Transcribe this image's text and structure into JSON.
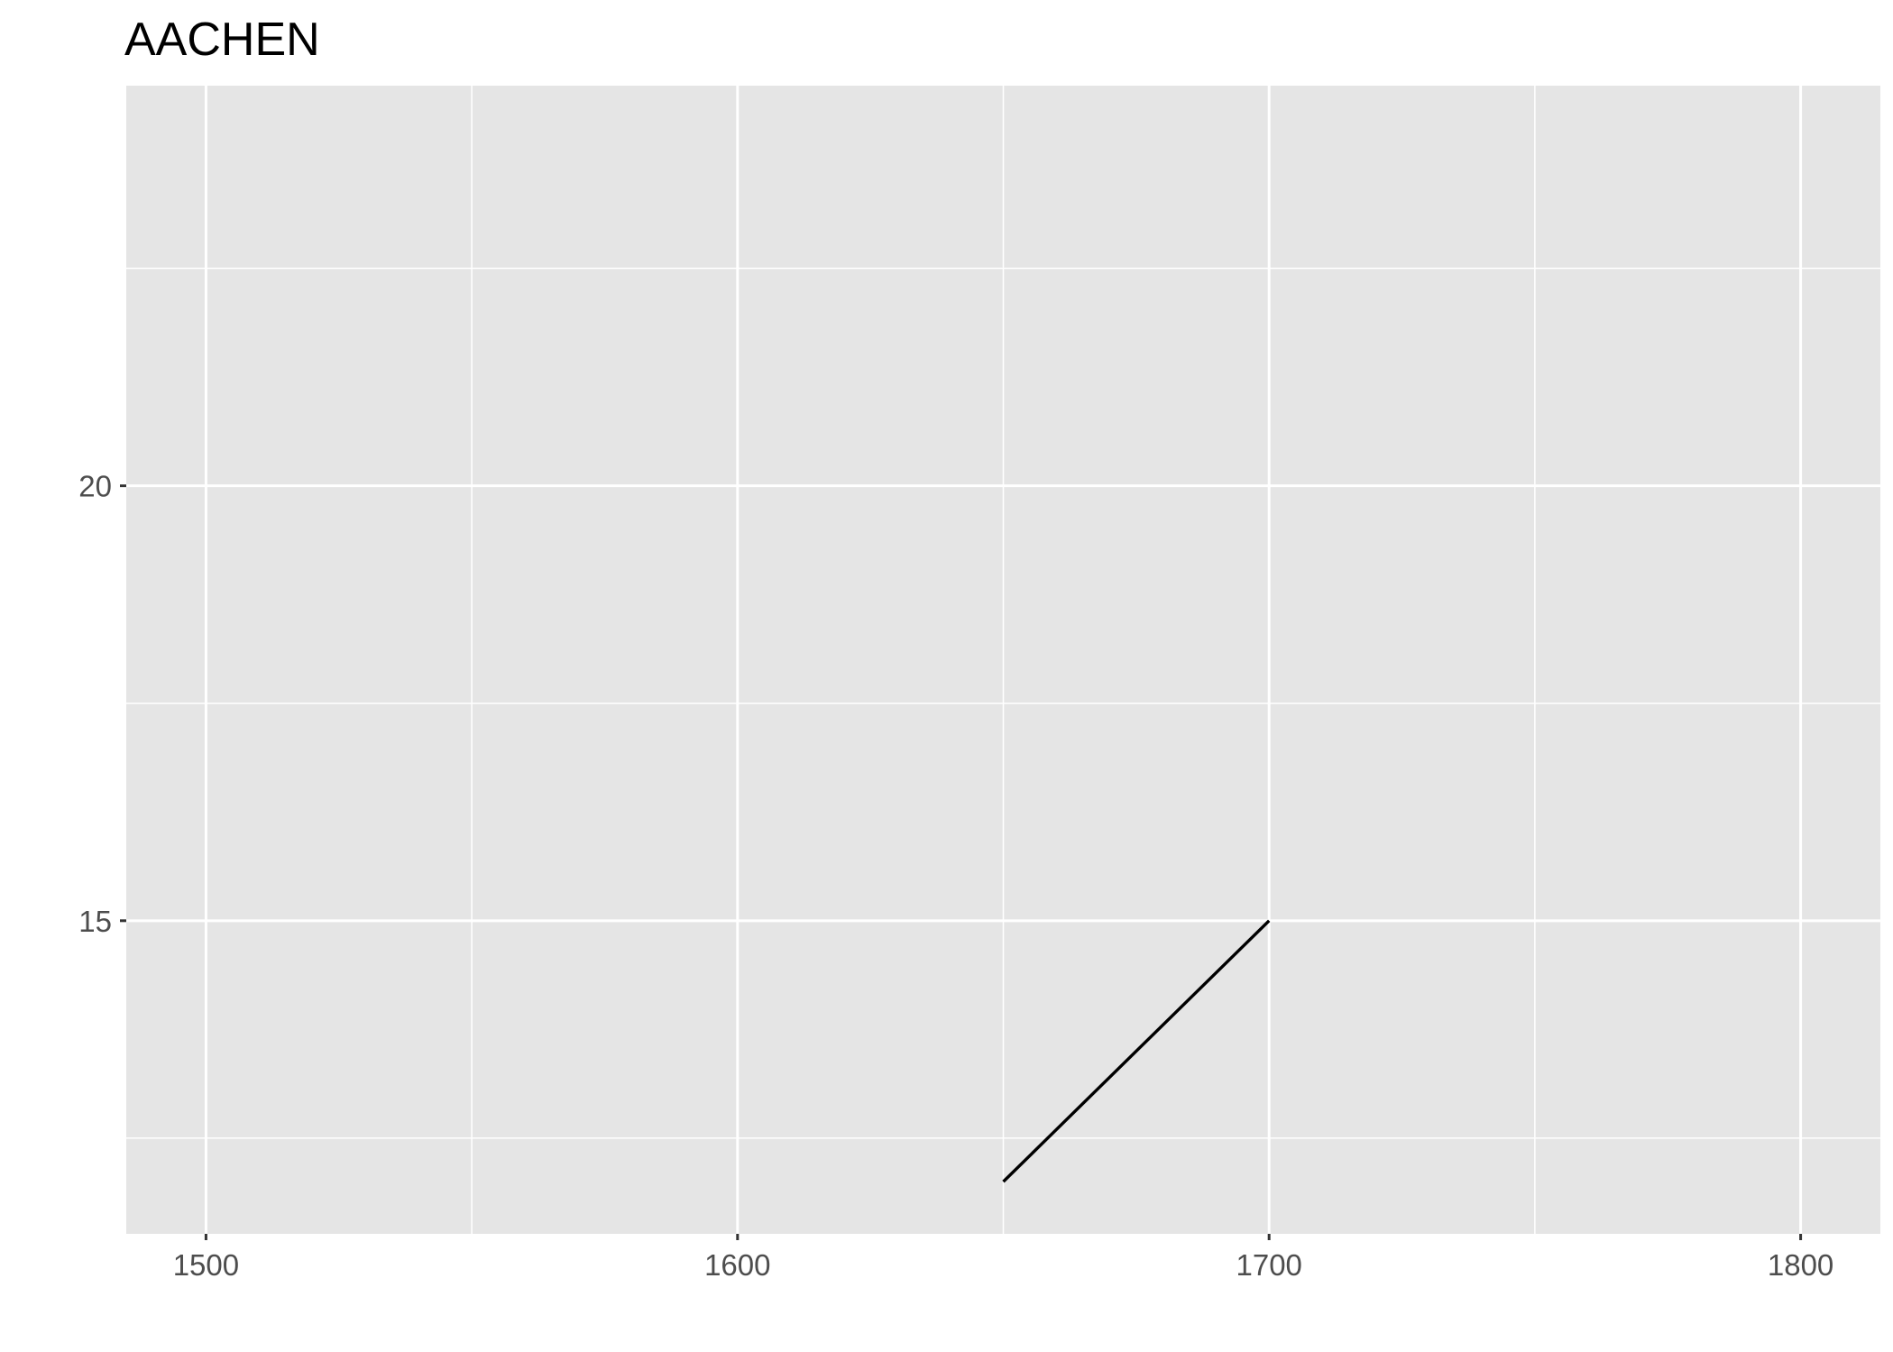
{
  "chart_data": {
    "type": "line",
    "title": "AACHEN",
    "xlabel": "",
    "ylabel": "",
    "xlim": [
      1485,
      1815
    ],
    "ylim": [
      11.4,
      24.6
    ],
    "x_ticks": [
      1500,
      1600,
      1700,
      1800
    ],
    "y_ticks": [
      15,
      20
    ],
    "x_minor": [
      1550,
      1650,
      1750
    ],
    "y_minor": [
      12.5,
      17.5,
      22.5
    ],
    "grid": true,
    "legend": "none",
    "series": [
      {
        "x": [
          1650,
          1700
        ],
        "y": [
          12,
          15
        ],
        "color": "#000000"
      }
    ],
    "colors": {
      "panel": "#e5e5e5",
      "grid": "#ffffff",
      "tick": "#333333",
      "tick_label": "#4d4d4d"
    }
  }
}
